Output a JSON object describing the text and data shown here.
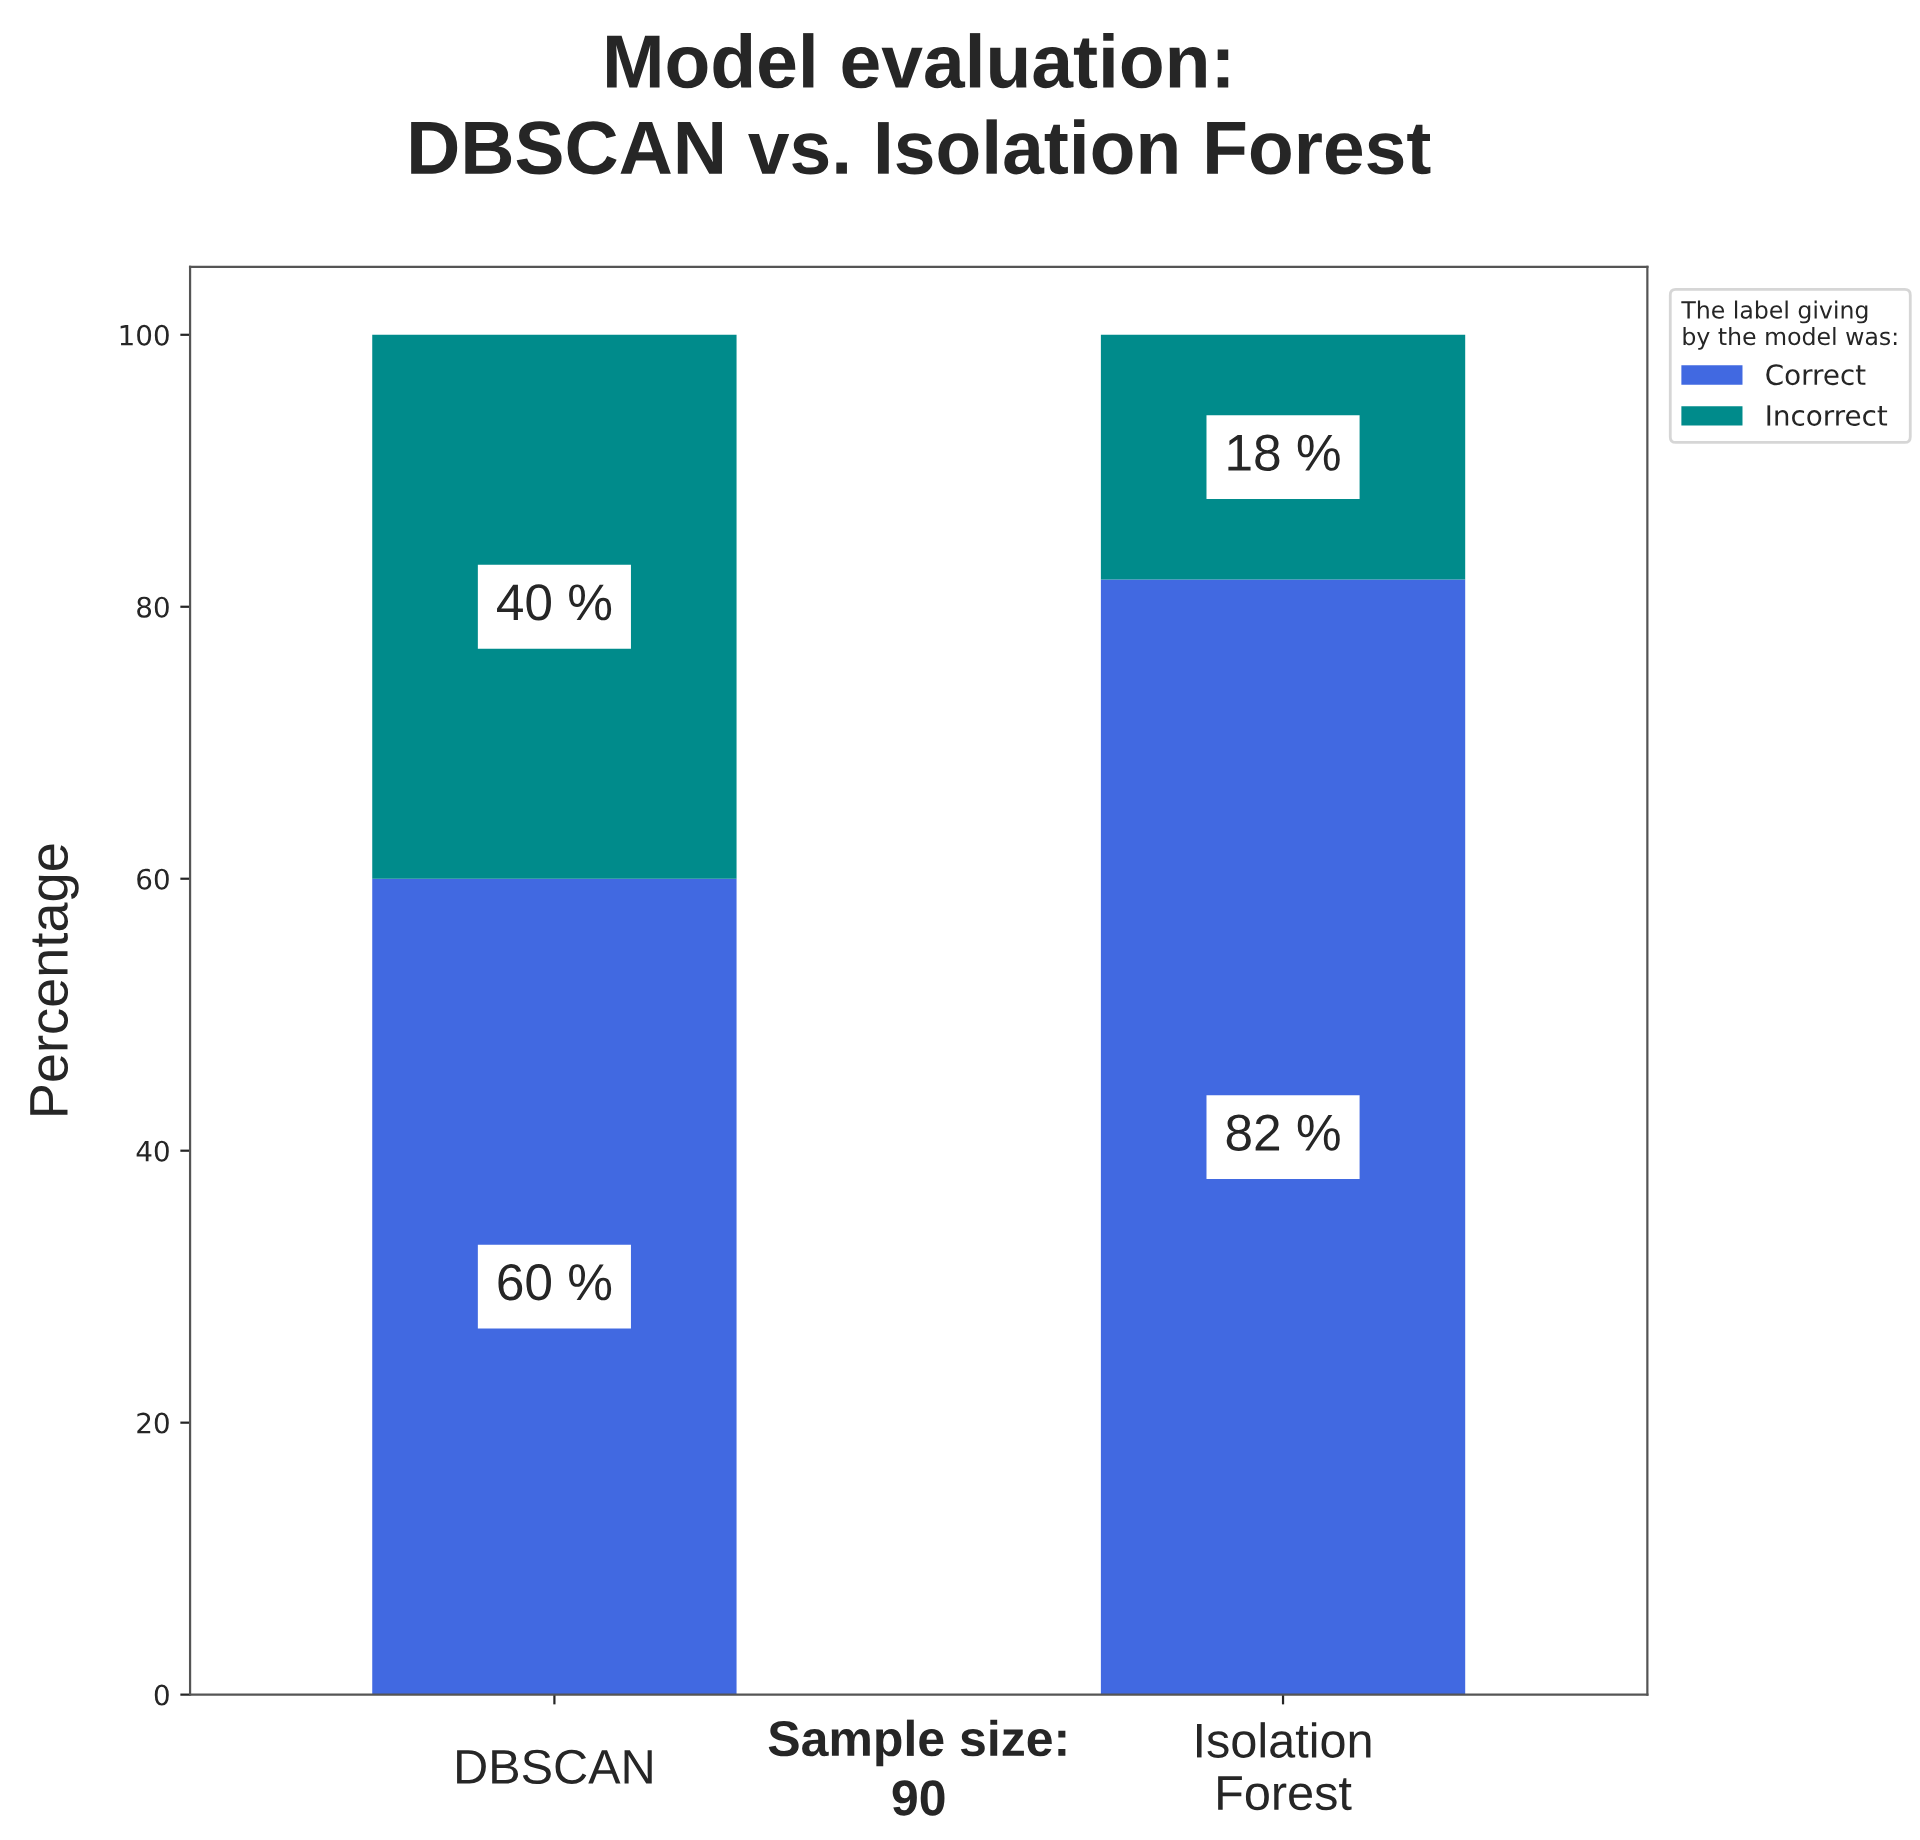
{
  "chart_data": {
    "type": "bar",
    "title": "Model evaluation:\nDBSCAN vs. Isolation Forest",
    "ylabel": "Percentage",
    "legend_title": "The label giving\nby the model was:",
    "annotations": [
      "Sample size:\n90"
    ],
    "categories": [
      "DBSCAN",
      "Isolation\nForest"
    ],
    "stacked": true,
    "series": [
      {
        "name": "Correct",
        "color": "#4169e1",
        "values": [
          60,
          82
        ],
        "value_labels": [
          "60 %",
          "82 %"
        ]
      },
      {
        "name": "Incorrect",
        "color": "#008b8b",
        "values": [
          40,
          18
        ],
        "value_labels": [
          "40 %",
          "18 %"
        ]
      }
    ],
    "ylim": [
      0,
      105
    ],
    "yticks": [
      0,
      20,
      40,
      60,
      80,
      100
    ],
    "legend": "top right"
  }
}
